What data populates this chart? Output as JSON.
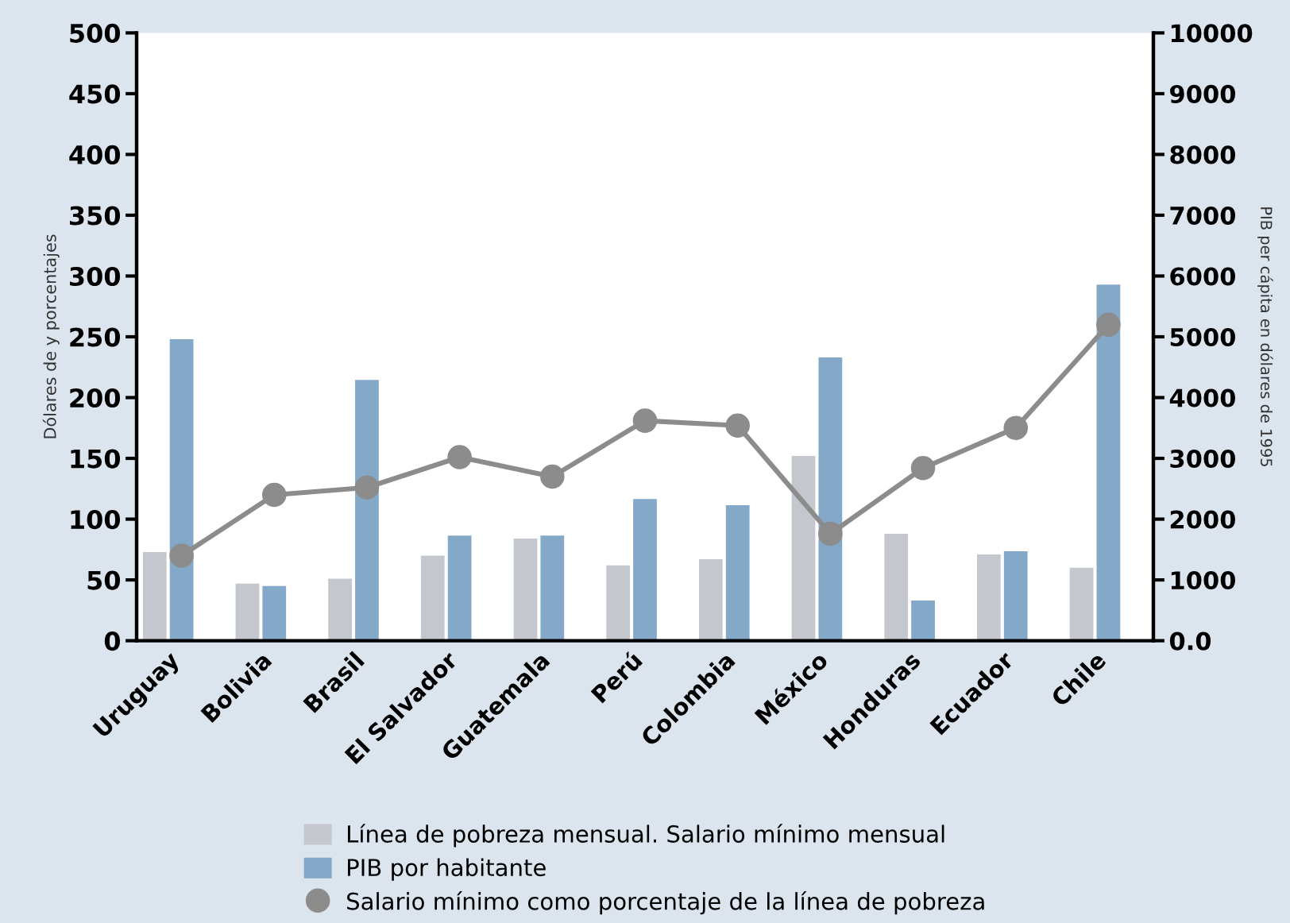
{
  "chart_data": {
    "type": "bar",
    "categories": [
      "Uruguay",
      "Bolivia",
      "Brasil",
      "El Salvador",
      "Guatemala",
      "Perú",
      "Colombia",
      "México",
      "Honduras",
      "Ecuador",
      "Chile"
    ],
    "series": [
      {
        "name": "Línea de pobreza mensual. Salario mínimo mensual",
        "color": "#c4c8ce",
        "values": [
          73,
          47,
          51,
          70,
          84,
          62,
          67,
          152,
          88,
          71,
          60
        ]
      },
      {
        "name": "PIB por habitante",
        "axis": "y2",
        "color": "#84a8c8",
        "values": [
          4960,
          900,
          4290,
          1730,
          1730,
          2330,
          2230,
          4660,
          660,
          1470,
          5860
        ]
      },
      {
        "name": "Salario mínimo como porcentaje de la línea de pobreza",
        "type": "line",
        "color": "#8c8c8c",
        "marker": "circle",
        "values": [
          70,
          120,
          126,
          151,
          135,
          181,
          177,
          88,
          142,
          175,
          260
        ]
      }
    ],
    "ylabel": "Dólares de y porcentajes",
    "y2label": "PIB per cápita en dólares de 1995",
    "ylim": [
      0,
      500
    ],
    "yticks": [
      0,
      50,
      100,
      150,
      200,
      250,
      300,
      350,
      400,
      450,
      500
    ],
    "y2lim": [
      0,
      10000
    ],
    "y2ticks": [
      {
        "value": 0,
        "label": "0.0"
      },
      1000,
      2000,
      3000,
      4000,
      5000,
      6000,
      7000,
      8000,
      9000,
      10000
    ],
    "legend": "bottom",
    "grid": false
  }
}
